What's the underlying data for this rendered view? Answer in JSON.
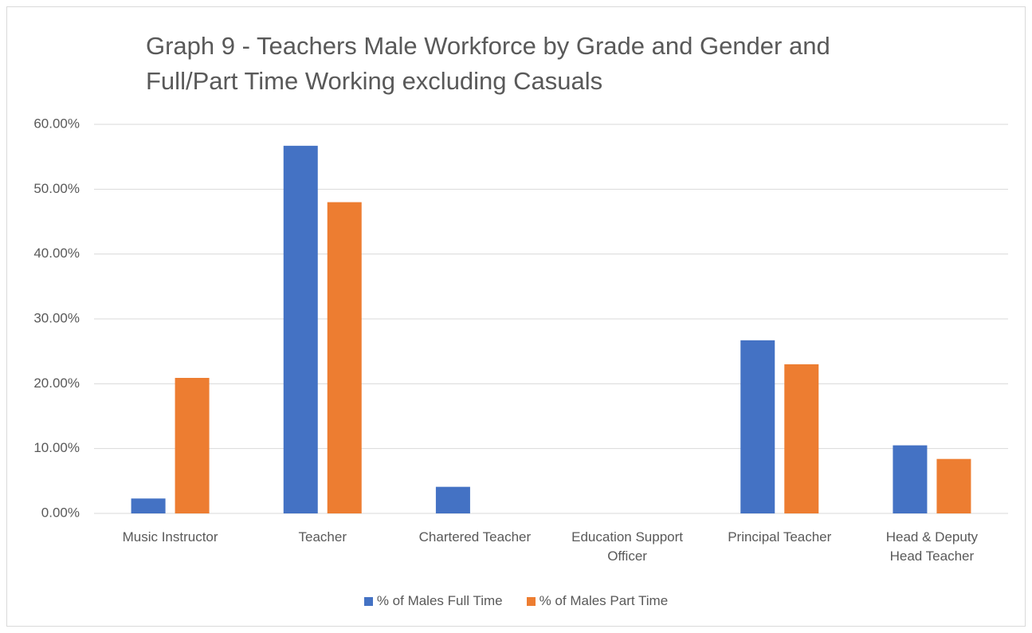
{
  "chart_data": {
    "type": "bar",
    "title": "Graph 9 - Teachers Male Workforce by Grade and Gender and Full/Part Time Working excluding Casuals",
    "categories": [
      "Music Instructor",
      "Teacher",
      "Chartered Teacher",
      "Education Support Officer",
      "Principal Teacher",
      "Head & Deputy Head Teacher"
    ],
    "series": [
      {
        "name": "% of Males Full Time",
        "color": "#4472c4",
        "values": [
          2.3,
          56.7,
          4.1,
          0,
          26.7,
          10.5
        ]
      },
      {
        "name": "% of Males Part Time",
        "color": "#ed7d31",
        "values": [
          20.9,
          48.0,
          0,
          0,
          23.0,
          8.4
        ]
      }
    ],
    "ylim": [
      0,
      60
    ],
    "yticks": [
      {
        "value": 0,
        "label": "0.00%"
      },
      {
        "value": 10,
        "label": "10.00%"
      },
      {
        "value": 20,
        "label": "20.00%"
      },
      {
        "value": 30,
        "label": "30.00%"
      },
      {
        "value": 40,
        "label": "40.00%"
      },
      {
        "value": 50,
        "label": "50.00%"
      },
      {
        "value": 60,
        "label": "60.00%"
      }
    ],
    "grid": true,
    "legend": "bottom"
  }
}
